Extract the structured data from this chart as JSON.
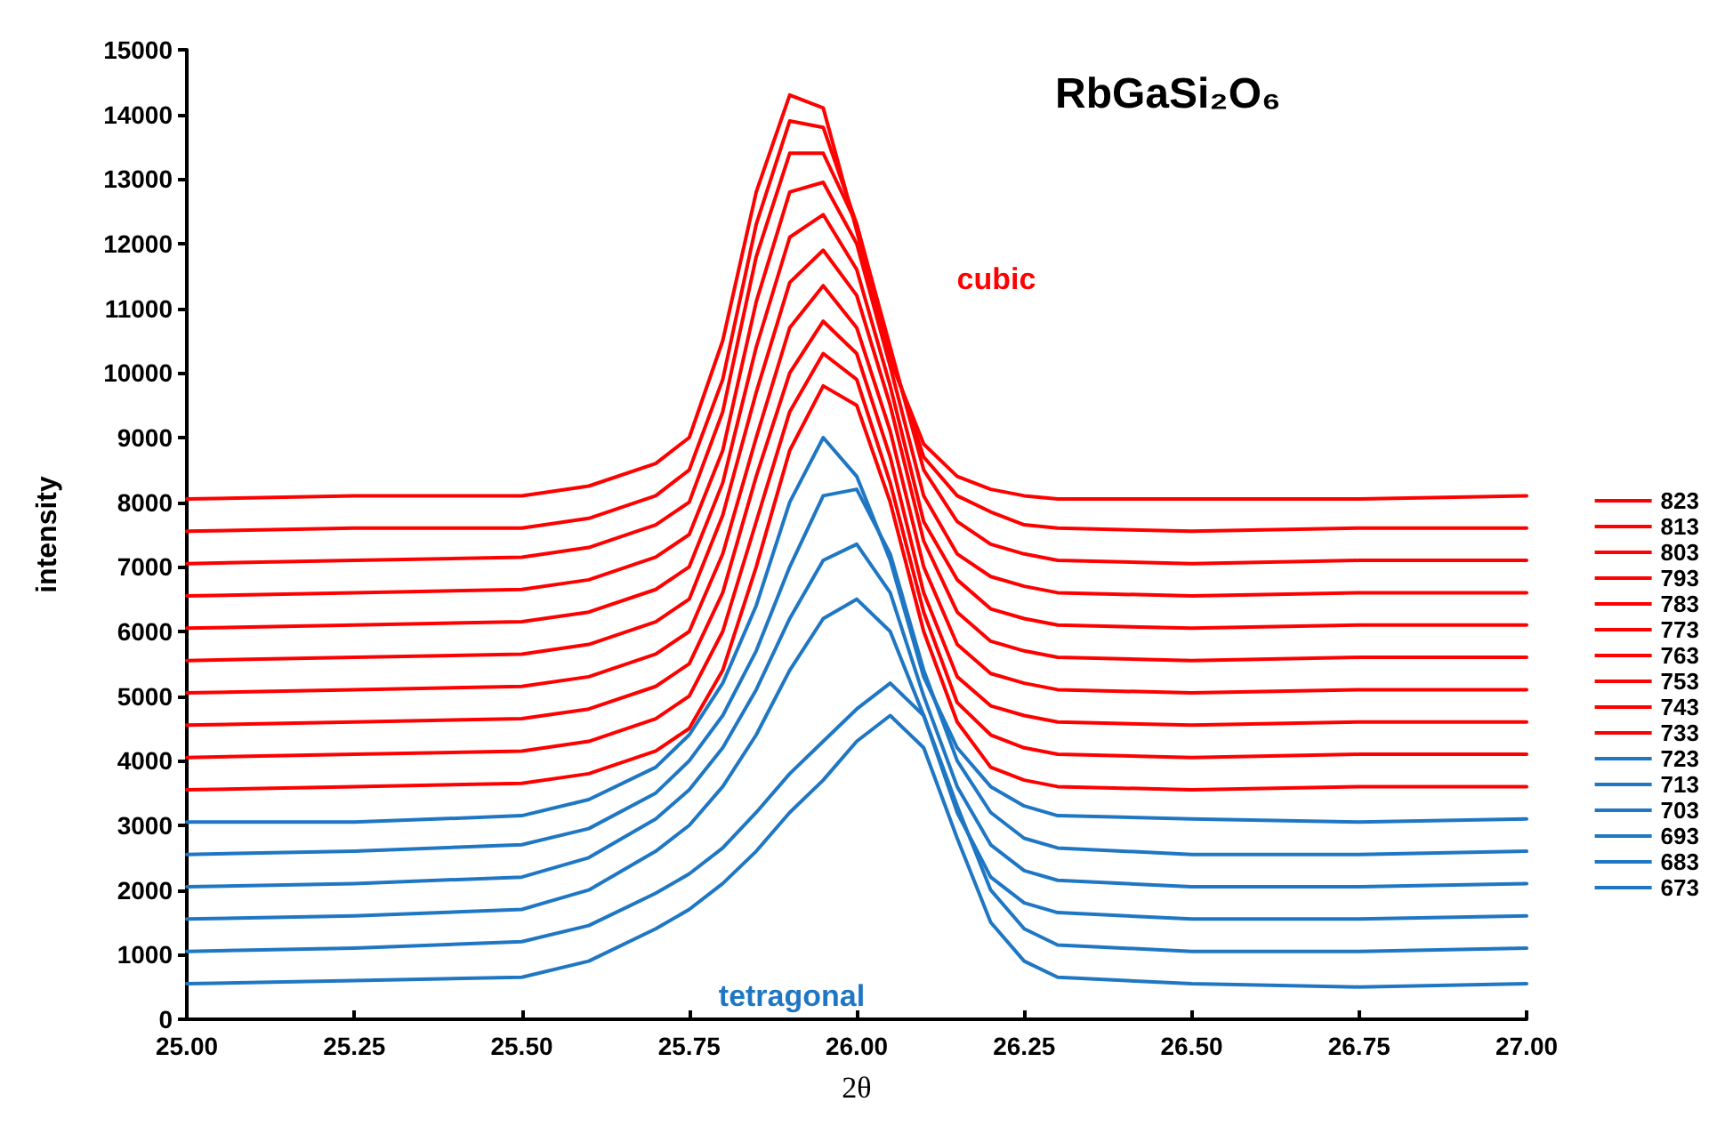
{
  "chart_data": {
    "type": "line",
    "title": "RbGaSi₂O₆",
    "xlabel": "2θ",
    "ylabel": "intensity",
    "annotations": [
      "cubic",
      "tetragonal"
    ],
    "x": [
      25.0,
      25.25,
      25.5,
      25.6,
      25.7,
      25.75,
      25.8,
      25.85,
      25.9,
      25.95,
      26.0,
      26.05,
      26.1,
      26.15,
      26.2,
      26.25,
      26.3,
      26.5,
      26.75,
      27.0
    ],
    "xlim": [
      25,
      27
    ],
    "xticks": [
      {
        "value": 25,
        "label": "25.00"
      },
      {
        "value": 25.25,
        "label": "25.25"
      },
      {
        "value": 25.5,
        "label": "25.50"
      },
      {
        "value": 25.75,
        "label": "25.75"
      },
      {
        "value": 26,
        "label": "26.00"
      },
      {
        "value": 26.25,
        "label": "26.25"
      },
      {
        "value": 26.5,
        "label": "26.50"
      },
      {
        "value": 26.75,
        "label": "26.75"
      },
      {
        "value": 27,
        "label": "27.00"
      }
    ],
    "ylim": [
      0,
      15000
    ],
    "yticks": [
      0,
      1000,
      2000,
      3000,
      4000,
      5000,
      6000,
      7000,
      8000,
      9000,
      10000,
      11000,
      12000,
      13000,
      14000,
      15000
    ],
    "grid": false,
    "legend": "right",
    "marker": "none",
    "line_style": "solid",
    "series": [
      {
        "name": "823",
        "color": "#ff0000",
        "values": [
          8050,
          8100,
          8100,
          8250,
          8600,
          9000,
          10500,
          12800,
          14300,
          14100,
          12200,
          10200,
          8900,
          8400,
          8200,
          8100,
          8050,
          8050,
          8050,
          8100
        ]
      },
      {
        "name": "813",
        "color": "#ff0000",
        "values": [
          7550,
          7600,
          7600,
          7750,
          8100,
          8500,
          9900,
          12300,
          13900,
          13800,
          12300,
          10300,
          8700,
          8100,
          7850,
          7650,
          7600,
          7550,
          7600,
          7600
        ]
      },
      {
        "name": "803",
        "color": "#ff0000",
        "values": [
          7050,
          7100,
          7150,
          7300,
          7650,
          8000,
          9400,
          11800,
          13400,
          13400,
          12300,
          10400,
          8500,
          7700,
          7350,
          7200,
          7100,
          7050,
          7100,
          7100
        ]
      },
      {
        "name": "793",
        "color": "#ff0000",
        "values": [
          6550,
          6600,
          6650,
          6800,
          7150,
          7500,
          8800,
          11100,
          12800,
          12950,
          12000,
          10100,
          8100,
          7200,
          6850,
          6700,
          6600,
          6550,
          6600,
          6600
        ]
      },
      {
        "name": "783",
        "color": "#ff0000",
        "values": [
          6050,
          6100,
          6150,
          6300,
          6650,
          7000,
          8300,
          10400,
          12100,
          12450,
          11600,
          9800,
          7700,
          6800,
          6350,
          6200,
          6100,
          6050,
          6100,
          6100
        ]
      },
      {
        "name": "773",
        "color": "#ff0000",
        "values": [
          5550,
          5600,
          5650,
          5800,
          6150,
          6500,
          7800,
          9700,
          11400,
          11900,
          11200,
          9500,
          7400,
          6300,
          5850,
          5700,
          5600,
          5550,
          5600,
          5600
        ]
      },
      {
        "name": "763",
        "color": "#ff0000",
        "values": [
          5050,
          5100,
          5150,
          5300,
          5650,
          6000,
          7200,
          9000,
          10700,
          11350,
          10700,
          9100,
          7000,
          5800,
          5350,
          5200,
          5100,
          5050,
          5100,
          5100
        ]
      },
      {
        "name": "753",
        "color": "#ff0000",
        "values": [
          4550,
          4600,
          4650,
          4800,
          5150,
          5500,
          6600,
          8400,
          10000,
          10800,
          10300,
          8700,
          6600,
          5300,
          4850,
          4700,
          4600,
          4550,
          4600,
          4600
        ]
      },
      {
        "name": "743",
        "color": "#ff0000",
        "values": [
          4050,
          4100,
          4150,
          4300,
          4650,
          5000,
          6000,
          7700,
          9400,
          10300,
          9900,
          8300,
          6300,
          4900,
          4400,
          4200,
          4100,
          4050,
          4100,
          4100
        ]
      },
      {
        "name": "733",
        "color": "#ff0000",
        "values": [
          3550,
          3600,
          3650,
          3800,
          4150,
          4500,
          5400,
          7000,
          8800,
          9800,
          9500,
          8000,
          6000,
          4600,
          3900,
          3700,
          3600,
          3550,
          3600,
          3600
        ]
      },
      {
        "name": "723",
        "color": "#1f77c4",
        "values": [
          3050,
          3050,
          3150,
          3400,
          3900,
          4400,
          5200,
          6400,
          8000,
          9000,
          8400,
          7100,
          5300,
          4200,
          3600,
          3300,
          3150,
          3100,
          3050,
          3100
        ]
      },
      {
        "name": "713",
        "color": "#1f77c4",
        "values": [
          2550,
          2600,
          2700,
          2950,
          3500,
          4000,
          4700,
          5700,
          7000,
          8100,
          8200,
          7200,
          5400,
          4000,
          3200,
          2800,
          2650,
          2550,
          2550,
          2600
        ]
      },
      {
        "name": "703",
        "color": "#1f77c4",
        "values": [
          2050,
          2100,
          2200,
          2500,
          3100,
          3550,
          4200,
          5100,
          6200,
          7100,
          7350,
          6600,
          5000,
          3600,
          2700,
          2300,
          2150,
          2050,
          2050,
          2100
        ]
      },
      {
        "name": "693",
        "color": "#1f77c4",
        "values": [
          1550,
          1600,
          1700,
          2000,
          2600,
          3000,
          3600,
          4400,
          5400,
          6200,
          6500,
          6000,
          4700,
          3200,
          2200,
          1800,
          1650,
          1550,
          1550,
          1600
        ]
      },
      {
        "name": "683",
        "color": "#1f77c4",
        "values": [
          1050,
          1100,
          1200,
          1450,
          1950,
          2250,
          2650,
          3200,
          3800,
          4300,
          4800,
          5200,
          4700,
          3300,
          2000,
          1400,
          1150,
          1050,
          1050,
          1100
        ]
      },
      {
        "name": "673",
        "color": "#1f77c4",
        "values": [
          550,
          600,
          650,
          900,
          1400,
          1700,
          2100,
          2600,
          3200,
          3700,
          4300,
          4700,
          4200,
          2800,
          1500,
          900,
          650,
          550,
          500,
          550
        ]
      }
    ]
  }
}
